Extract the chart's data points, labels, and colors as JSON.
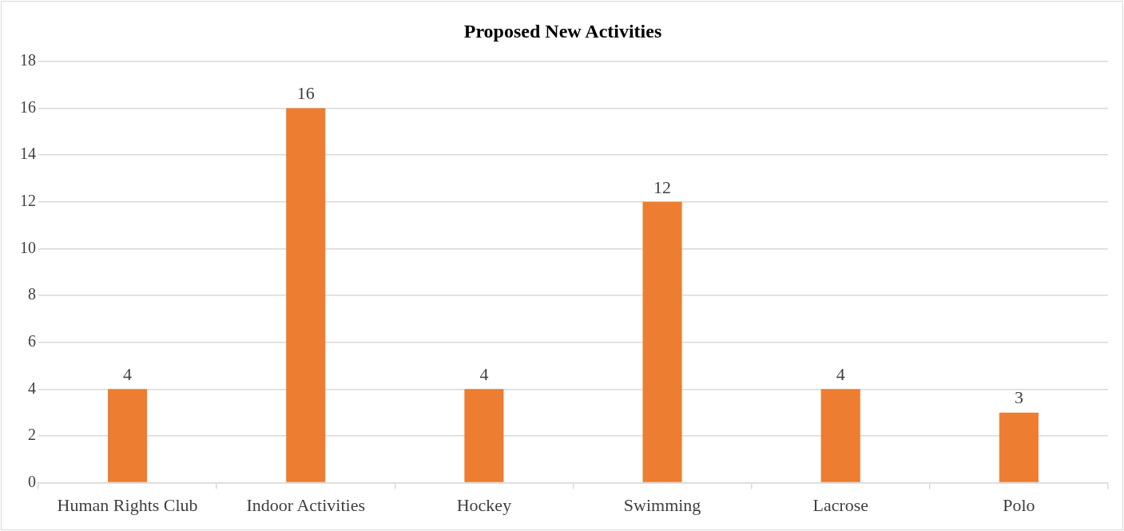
{
  "chart_data": {
    "type": "bar",
    "title": "Proposed New Activities",
    "categories": [
      "Human Rights Club",
      "Indoor Activities",
      "Hockey",
      "Swimming",
      "Lacrose",
      "Polo"
    ],
    "values": [
      4,
      16,
      4,
      12,
      4,
      3
    ],
    "color": "#ed7d31",
    "ylim": [
      0,
      18
    ],
    "yticks": [
      0,
      2,
      4,
      6,
      8,
      10,
      12,
      14,
      16,
      18
    ],
    "grid": "y",
    "data_labels": true,
    "legend": false
  }
}
